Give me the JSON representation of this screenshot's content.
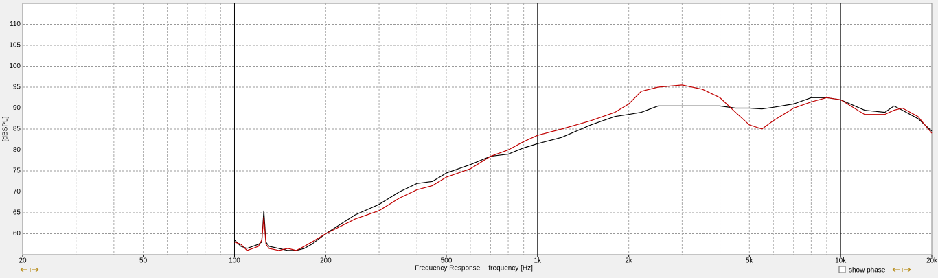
{
  "chart_data": {
    "type": "line",
    "xlabel": "Frequency Response -- frequency [Hz]",
    "ylabel": "[dBSPL]",
    "log_x": true,
    "grid": true,
    "xlim": [
      20,
      20000
    ],
    "ylim": [
      55,
      115
    ],
    "xticks": [
      20,
      50,
      100,
      200,
      500,
      {
        "value": 1000,
        "label": "1k"
      },
      {
        "value": 2000,
        "label": "2k"
      },
      {
        "value": 5000,
        "label": "5k"
      },
      {
        "value": 10000,
        "label": "10k"
      },
      {
        "value": 20000,
        "label": "20k"
      }
    ],
    "xgrid_major": [
      100,
      1000,
      10000
    ],
    "xgrid_minor": [
      30,
      40,
      50,
      60,
      70,
      80,
      90,
      200,
      300,
      400,
      500,
      600,
      700,
      800,
      900,
      2000,
      3000,
      4000,
      5000,
      6000,
      7000,
      8000,
      9000
    ],
    "yticks": [
      60,
      65,
      70,
      75,
      80,
      85,
      90,
      95,
      100,
      105,
      110
    ],
    "x": [
      100,
      105,
      110,
      115,
      120,
      123,
      125,
      127,
      130,
      140,
      150,
      160,
      170,
      180,
      200,
      250,
      300,
      350,
      400,
      450,
      500,
      600,
      700,
      800,
      900,
      1000,
      1200,
      1500,
      1800,
      2000,
      2200,
      2500,
      3000,
      3500,
      4000,
      4500,
      5000,
      5500,
      6000,
      7000,
      8000,
      9000,
      10000,
      12000,
      14000,
      15000,
      16000,
      18000,
      20000
    ],
    "series": [
      {
        "color": "#000000",
        "values": [
          58.5,
          57,
          56.5,
          57,
          57.5,
          58,
          65.5,
          58,
          57,
          56.5,
          56,
          56,
          56.5,
          57.5,
          60,
          64.5,
          67,
          70,
          72,
          72.5,
          74.5,
          76.5,
          78.5,
          79,
          80.5,
          81.5,
          83,
          86,
          88,
          88.5,
          89,
          90.5,
          90.5,
          90.5,
          90.5,
          90,
          90,
          89.8,
          90.2,
          91,
          92.5,
          92.5,
          92,
          89.5,
          89,
          90.5,
          89.5,
          87.5,
          84.5
        ]
      },
      {
        "color": "#c00000",
        "values": [
          58,
          57.5,
          56,
          56.5,
          57,
          58.5,
          64,
          57.5,
          56.5,
          56,
          56.5,
          56,
          57,
          58,
          60,
          63.5,
          65.5,
          68.5,
          70.5,
          71.5,
          73.5,
          75.5,
          78.5,
          80,
          82,
          83.5,
          85,
          87,
          89,
          91,
          94,
          95,
          95.5,
          94.5,
          92.5,
          89,
          86,
          85,
          87,
          90,
          91.5,
          92.5,
          92,
          88.5,
          88.5,
          89.5,
          90,
          88,
          84
        ]
      }
    ],
    "show_phase_label": "show phase"
  }
}
